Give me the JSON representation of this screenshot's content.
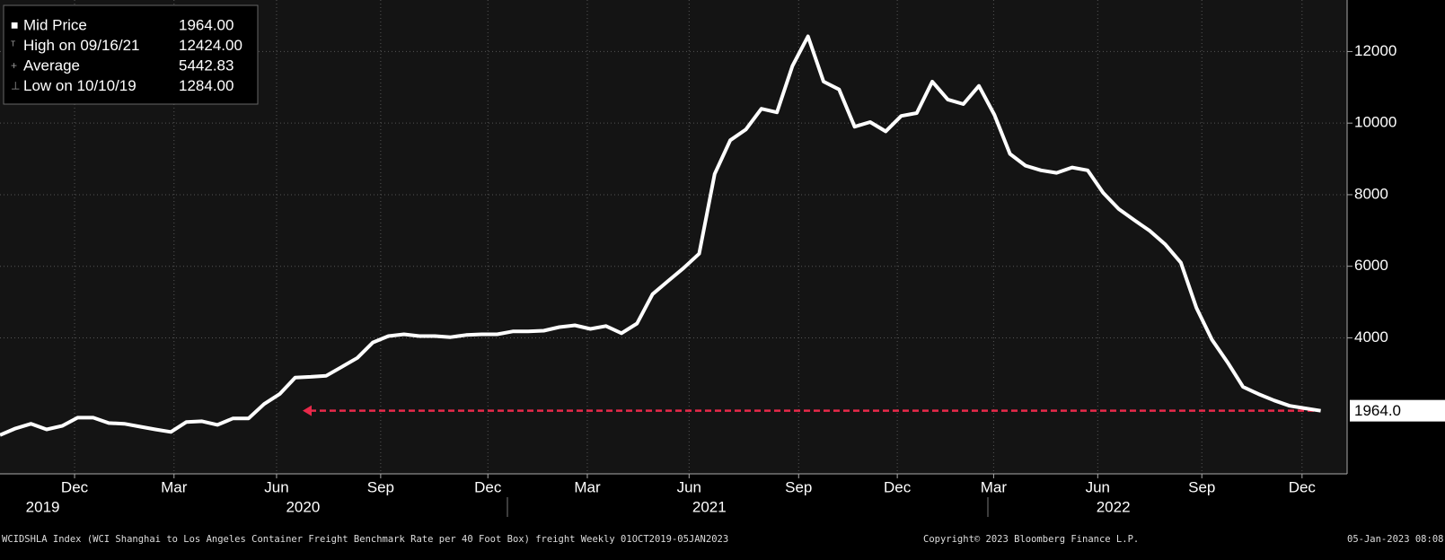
{
  "chart_data": {
    "type": "line",
    "series": [
      {
        "name": "Mid Price",
        "color": "#ffffff",
        "values": [
          1284,
          1470,
          1600,
          1440,
          1540,
          1770,
          1770,
          1620,
          1600,
          1520,
          1440,
          1370,
          1650,
          1670,
          1570,
          1750,
          1750,
          2150,
          2430,
          2890,
          2910,
          2940,
          3190,
          3440,
          3870,
          4050,
          4100,
          4050,
          4050,
          4020,
          4080,
          4100,
          4100,
          4180,
          4180,
          4200,
          4300,
          4350,
          4250,
          4330,
          4130,
          4400,
          5220,
          5590,
          5950,
          6350,
          8580,
          9520,
          9820,
          10400,
          10300,
          11600,
          12424,
          11160,
          10940,
          9900,
          10030,
          9770,
          10200,
          10280,
          11160,
          10660,
          10530,
          11040,
          10230,
          9140,
          8810,
          8680,
          8610,
          8760,
          8680,
          8050,
          7600,
          7290,
          6990,
          6610,
          6100,
          4840,
          3950,
          3320,
          2630,
          2430,
          2250,
          2100,
          2030,
          1964
        ]
      }
    ],
    "x": [
      0,
      2,
      4,
      6,
      8,
      10,
      12,
      14,
      16,
      18,
      20,
      22,
      24,
      26,
      28,
      30,
      32,
      34,
      36,
      38,
      40,
      42,
      44,
      46,
      48,
      50,
      52,
      54,
      56,
      58,
      60,
      62,
      64,
      66,
      68,
      70,
      72,
      74,
      76,
      78,
      80,
      82,
      84,
      86,
      88,
      90,
      92,
      94,
      96,
      98,
      100,
      102,
      104,
      106,
      108,
      110,
      112,
      114,
      116,
      118,
      120,
      122,
      124,
      126,
      128,
      130,
      132,
      134,
      136,
      138,
      140,
      142,
      144,
      146,
      148,
      150,
      152,
      154,
      156,
      158,
      160,
      162,
      164,
      166,
      168,
      170
    ],
    "xlim": [
      0,
      173.4
    ],
    "xticks": [
      {
        "value": 9.6,
        "label": "Dec"
      },
      {
        "value": 22.4,
        "label": "Mar"
      },
      {
        "value": 35.6,
        "label": "Jun"
      },
      {
        "value": 49,
        "label": "Sep"
      },
      {
        "value": 62.8,
        "label": "Dec"
      },
      {
        "value": 75.6,
        "label": "Mar"
      },
      {
        "value": 88.7,
        "label": "Jun"
      },
      {
        "value": 102.8,
        "label": "Sep"
      },
      {
        "value": 115.5,
        "label": "Dec"
      },
      {
        "value": 127.9,
        "label": "Mar"
      },
      {
        "value": 141.3,
        "label": "Jun"
      },
      {
        "value": 154.7,
        "label": "Sep"
      },
      {
        "value": 167.6,
        "label": "Dec"
      }
    ],
    "year_labels": [
      {
        "value": 5.5,
        "label": "2019"
      },
      {
        "value": 39,
        "label": "2020"
      },
      {
        "value": 91.3,
        "label": "2021"
      },
      {
        "value": 143.3,
        "label": "2022"
      }
    ],
    "ylim": [
      200,
      13440
    ],
    "yticks": [
      4000,
      6000,
      8000,
      10000,
      12000
    ],
    "grid": true,
    "last_price": {
      "value": 1964,
      "label": "1964.0",
      "color": "#e8294a"
    },
    "legend": [
      {
        "label": "Mid Price",
        "value": "1964.00"
      },
      {
        "label": "High on 09/16/21",
        "value": "12424.00"
      },
      {
        "label": "Average",
        "value": "5442.83"
      },
      {
        "label": "Low on 10/10/19",
        "value": "1284.00"
      }
    ],
    "footer": {
      "description": "WCIDSHLA Index (WCI Shanghai to Los Angeles Container Freight Benchmark Rate per 40 Foot Box) freight  Weekly 01OCT2019-05JAN2023",
      "copyright": "Copyright© 2023 Bloomberg Finance L.P.",
      "timestamp": "05-Jan-2023 08:08:"
    }
  }
}
